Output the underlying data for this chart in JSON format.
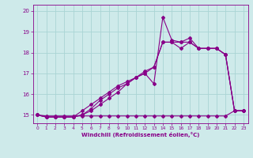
{
  "xlabel": "Windchill (Refroidissement éolien,°C)",
  "xlim": [
    -0.5,
    23.5
  ],
  "ylim": [
    14.6,
    20.3
  ],
  "yticks": [
    15,
    16,
    17,
    18,
    19,
    20
  ],
  "xticks": [
    0,
    1,
    2,
    3,
    4,
    5,
    6,
    7,
    8,
    9,
    10,
    11,
    12,
    13,
    14,
    15,
    16,
    17,
    18,
    19,
    20,
    21,
    22,
    23
  ],
  "bg_color": "#ceeaea",
  "line_color": "#880088",
  "grid_color": "#aad4d4",
  "series": [
    [
      15.0,
      14.9,
      14.9,
      14.9,
      14.9,
      15.0,
      15.3,
      15.7,
      16.0,
      16.3,
      16.5,
      16.8,
      17.0,
      17.3,
      18.5,
      18.5,
      18.2,
      18.5,
      18.2,
      18.2,
      18.2,
      17.9,
      15.2,
      15.2
    ],
    [
      15.0,
      14.9,
      14.9,
      14.9,
      14.9,
      15.0,
      15.2,
      15.5,
      15.8,
      16.1,
      16.5,
      16.8,
      17.0,
      16.5,
      19.7,
      18.6,
      18.5,
      18.7,
      18.2,
      18.2,
      18.2,
      17.9,
      15.2,
      15.2
    ],
    [
      15.0,
      14.95,
      14.95,
      14.95,
      14.95,
      14.95,
      14.95,
      14.95,
      14.95,
      14.95,
      14.95,
      14.95,
      14.95,
      14.95,
      14.95,
      14.95,
      14.95,
      14.95,
      14.95,
      14.95,
      14.95,
      14.95,
      15.2,
      15.2
    ],
    [
      15.0,
      14.9,
      14.9,
      14.9,
      14.9,
      15.2,
      15.5,
      15.8,
      16.1,
      16.4,
      16.6,
      16.8,
      17.1,
      17.3,
      18.5,
      18.5,
      18.5,
      18.5,
      18.2,
      18.2,
      18.2,
      17.9,
      15.2,
      15.2
    ]
  ],
  "marker": "D",
  "marker_size": 2.0,
  "linewidth": 0.8
}
